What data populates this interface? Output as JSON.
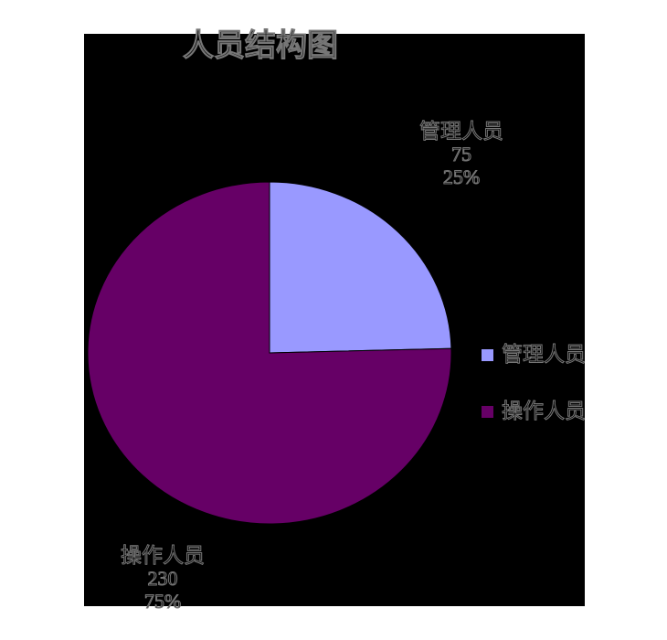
{
  "page": {
    "background": "#ffffff",
    "chart_background": "#000000"
  },
  "chart_data": {
    "type": "pie",
    "title": "人员结构图",
    "categories": [
      "管理人员",
      "操作人员"
    ],
    "values": [
      75,
      230
    ],
    "percent_labels": [
      "25%",
      "75%"
    ],
    "colors": [
      "#9999ff",
      "#660066"
    ],
    "slice_border_color": "#000000",
    "start_angle_deg": -90,
    "direction": "clockwise",
    "legend_position": "right",
    "data_labels": "category, value, percent"
  },
  "title": {
    "text": "人员结构图"
  },
  "slice_labels": [
    {
      "name": "管理人员",
      "value": "75",
      "percent": "25%"
    },
    {
      "name": "操作人员",
      "value": "230",
      "percent": "75%"
    }
  ],
  "legend": {
    "items": [
      {
        "label": "管理人员",
        "color": "#9999ff"
      },
      {
        "label": "操作人员",
        "color": "#660066"
      }
    ]
  }
}
